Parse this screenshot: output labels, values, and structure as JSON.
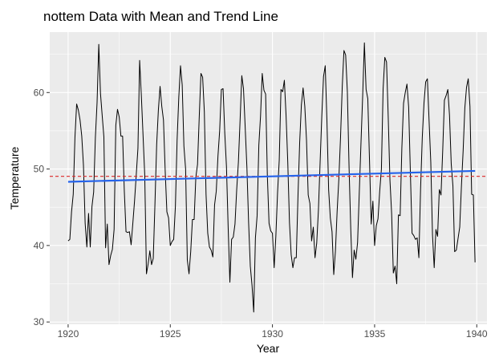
{
  "chart_data": {
    "type": "line",
    "title": "nottem Data with Mean and Trend Line",
    "xlabel": "Year",
    "ylabel": "Temperature",
    "xlim": [
      1919.1,
      1940.5
    ],
    "ylim": [
      29.7,
      67.9
    ],
    "x_ticks": [
      1920,
      1925,
      1930,
      1935,
      1940
    ],
    "y_ticks": [
      30,
      40,
      50,
      60
    ],
    "grid": true,
    "background": "#ebebeb",
    "series": [
      {
        "style": "line",
        "color": "#000000",
        "start": 1920,
        "frequency": 12,
        "values": [
          40.6,
          40.8,
          44.4,
          46.7,
          54.1,
          58.5,
          57.7,
          56.4,
          54.3,
          50.5,
          42.9,
          39.8,
          44.2,
          39.8,
          45.1,
          47.0,
          54.1,
          58.7,
          66.3,
          59.9,
          57.0,
          54.2,
          39.7,
          42.8,
          37.5,
          38.7,
          39.5,
          42.1,
          55.7,
          57.8,
          56.8,
          54.3,
          54.3,
          47.1,
          41.8,
          41.7,
          41.8,
          40.1,
          42.9,
          45.8,
          49.2,
          52.7,
          64.2,
          59.6,
          54.4,
          49.2,
          36.3,
          37.6,
          39.3,
          37.5,
          38.3,
          45.5,
          53.2,
          57.7,
          60.8,
          58.2,
          56.4,
          49.8,
          44.4,
          43.6,
          40.0,
          40.5,
          40.8,
          45.1,
          53.8,
          59.4,
          63.5,
          61.0,
          53.0,
          50.0,
          38.1,
          36.3,
          39.2,
          43.4,
          43.4,
          48.9,
          50.6,
          56.8,
          62.5,
          62.0,
          57.5,
          46.7,
          41.6,
          39.8,
          39.4,
          38.5,
          45.3,
          47.1,
          51.7,
          55.0,
          60.4,
          60.5,
          54.7,
          50.3,
          42.3,
          35.2,
          40.8,
          41.1,
          42.8,
          47.3,
          50.9,
          56.4,
          62.2,
          60.5,
          55.4,
          50.2,
          43.0,
          37.3,
          34.8,
          31.3,
          41.0,
          43.9,
          53.1,
          56.9,
          62.5,
          60.3,
          59.8,
          49.2,
          42.9,
          41.9,
          41.6,
          37.1,
          41.2,
          46.9,
          51.2,
          60.4,
          60.1,
          61.6,
          57.0,
          50.9,
          43.0,
          38.8,
          37.1,
          38.4,
          38.4,
          46.5,
          53.5,
          58.4,
          60.6,
          58.2,
          53.8,
          46.6,
          45.5,
          40.6,
          42.4,
          38.4,
          40.3,
          44.6,
          50.9,
          57.0,
          62.1,
          63.5,
          56.3,
          47.3,
          43.6,
          41.8,
          36.2,
          39.3,
          44.5,
          48.7,
          54.2,
          60.8,
          65.5,
          64.9,
          60.1,
          50.2,
          42.1,
          35.8,
          39.4,
          38.2,
          40.4,
          46.9,
          53.4,
          59.6,
          66.5,
          60.4,
          59.2,
          51.2,
          42.8,
          45.8,
          40.0,
          42.6,
          43.5,
          47.1,
          50.0,
          60.5,
          64.6,
          64.0,
          56.8,
          48.6,
          44.2,
          36.4,
          37.3,
          35.0,
          44.0,
          43.9,
          52.7,
          58.6,
          60.0,
          61.1,
          58.1,
          49.6,
          41.6,
          41.3,
          40.8,
          41.0,
          38.4,
          47.4,
          54.1,
          58.6,
          61.4,
          61.8,
          56.3,
          50.9,
          41.4,
          37.1,
          42.1,
          41.2,
          47.3,
          46.6,
          52.4,
          59.0,
          59.6,
          60.4,
          57.0,
          50.7,
          47.8,
          39.2,
          39.4,
          40.9,
          42.4,
          47.8,
          52.4,
          58.0,
          60.7,
          61.8,
          58.2,
          46.7,
          46.6,
          37.8
        ]
      },
      {
        "style": "line",
        "color": "#dc2626",
        "dash": true,
        "x": [
          1919.1,
          1940.5
        ],
        "values": [
          49.04,
          49.04
        ]
      },
      {
        "style": "line",
        "color": "#2563eb",
        "x": [
          1920.0,
          1939.92
        ],
        "values": [
          48.33,
          49.75
        ]
      }
    ]
  }
}
